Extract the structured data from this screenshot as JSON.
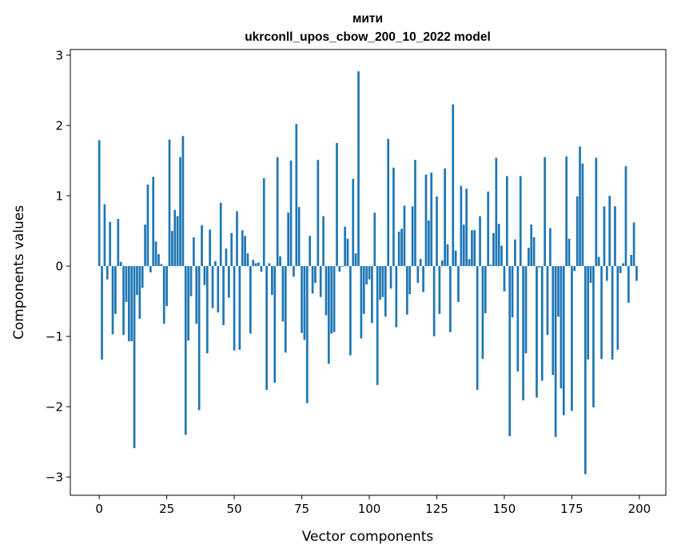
{
  "chart_data": {
    "type": "bar",
    "title": "мити",
    "subtitle": "ukrconll_upos_cbow_200_10_2022 model",
    "xlabel": "Vector components",
    "ylabel": "Components values",
    "xlim": [
      -10.7,
      209.8
    ],
    "ylim": [
      -3.26,
      3.08
    ],
    "xticks": [
      0,
      25,
      50,
      75,
      100,
      125,
      150,
      175,
      200
    ],
    "yticks": [
      -3,
      -2,
      -1,
      0,
      1,
      2,
      3
    ],
    "xtick_labels": [
      "0",
      "25",
      "50",
      "75",
      "100",
      "125",
      "150",
      "175",
      "200"
    ],
    "ytick_labels": [
      "−3",
      "−2",
      "−1",
      "0",
      "1",
      "2",
      "3"
    ],
    "bar_color": "#1f77b4",
    "grid": false,
    "values": [
      1.79,
      -1.33,
      0.88,
      -0.19,
      0.63,
      -0.97,
      -0.68,
      0.67,
      0.06,
      -0.98,
      -0.51,
      -1.07,
      -1.07,
      -2.59,
      -0.41,
      -0.75,
      -0.31,
      0.59,
      1.16,
      -0.09,
      1.27,
      0.35,
      0.17,
      0.03,
      -0.82,
      -0.57,
      1.8,
      0.5,
      0.8,
      0.71,
      1.55,
      1.85,
      -2.4,
      -1.06,
      -0.43,
      0.41,
      -0.82,
      -2.05,
      0.58,
      -0.27,
      -1.24,
      0.52,
      -0.6,
      0.07,
      -0.66,
      0.9,
      -0.84,
      0.25,
      -0.45,
      0.47,
      -1.2,
      0.78,
      -1.19,
      0.51,
      0.43,
      0.18,
      -0.96,
      0.09,
      0.04,
      0.05,
      -0.08,
      1.25,
      -1.76,
      0.04,
      -0.41,
      -1.66,
      1.55,
      0.14,
      -0.79,
      -1.23,
      0.76,
      1.5,
      -0.15,
      2.02,
      0.84,
      -0.95,
      -1.05,
      -1.95,
      0.43,
      -0.39,
      -0.24,
      1.51,
      -0.44,
      0.71,
      -0.7,
      -1.39,
      -0.96,
      -0.94,
      1.75,
      -0.08,
      -0.01,
      0.56,
      0.39,
      -1.27,
      1.24,
      0.18,
      2.77,
      -1.03,
      -0.68,
      -0.26,
      -0.19,
      -0.81,
      0.76,
      -1.69,
      -0.48,
      -0.44,
      -0.72,
      1.81,
      -0.32,
      1.4,
      -0.87,
      0.49,
      0.53,
      0.86,
      -0.69,
      -0.4,
      0.85,
      1.51,
      -0.24,
      0.1,
      -0.37,
      1.3,
      0.65,
      1.33,
      -1.0,
      0.99,
      -0.68,
      0.08,
      1.39,
      0.31,
      -0.94,
      2.3,
      0.22,
      -0.51,
      1.14,
      0.59,
      1.1,
      0.1,
      0.51,
      0.51,
      -1.76,
      0.71,
      -1.32,
      -0.67,
      1.06,
      0.02,
      0.47,
      1.54,
      0.6,
      0.29,
      -0.36,
      1.28,
      -2.42,
      -0.73,
      0.38,
      -1.5,
      1.28,
      -1.91,
      -1.24,
      0.26,
      0.59,
      0.41,
      -1.87,
      -0.02,
      -1.63,
      1.55,
      -0.98,
      0.54,
      -1.55,
      -2.43,
      -0.72,
      -1.74,
      -2.12,
      1.56,
      0.39,
      -2.06,
      -0.07,
      0.99,
      1.7,
      1.46,
      -2.96,
      -1.33,
      -0.24,
      -2.01,
      1.54,
      0.13,
      -1.32,
      0.85,
      -0.21,
      1.0,
      -1.33,
      0.85,
      -1.19,
      -0.1,
      0.04,
      1.42,
      -0.52,
      0.16,
      0.62,
      -0.21
    ]
  }
}
